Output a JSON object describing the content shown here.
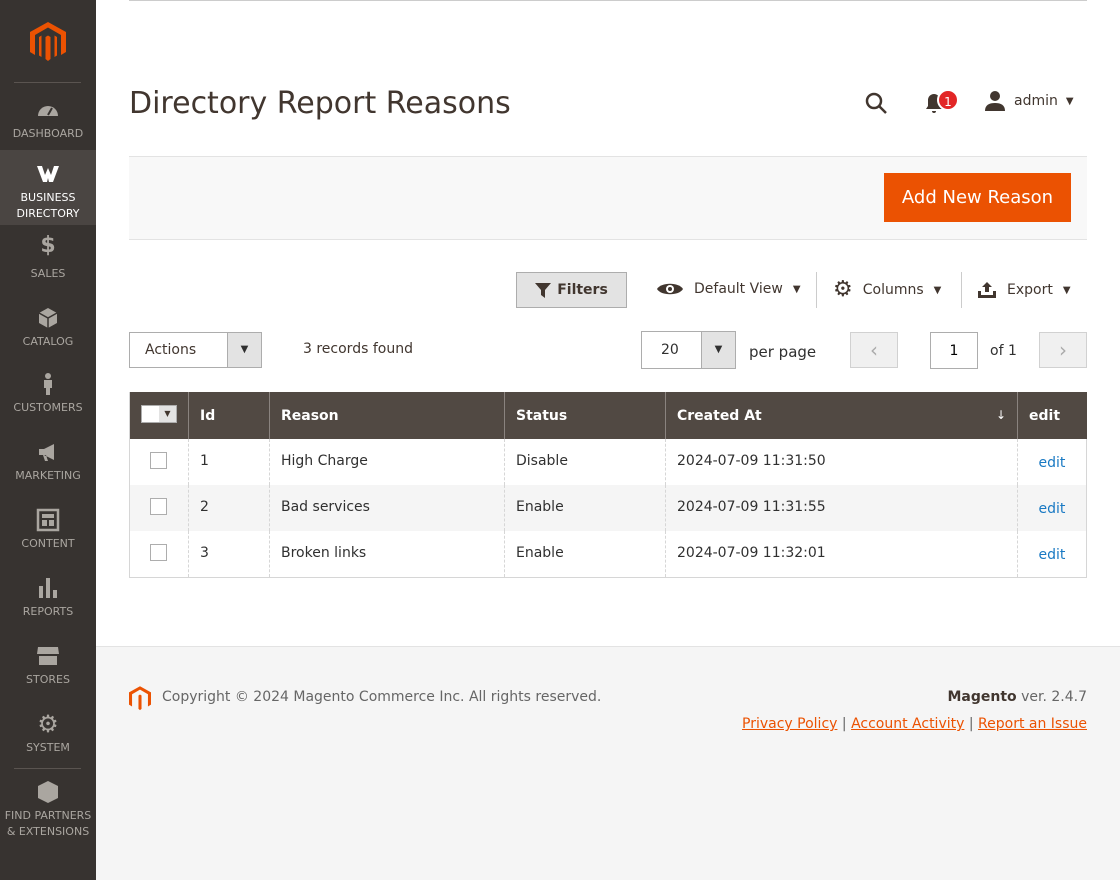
{
  "sidebar": {
    "items": [
      {
        "label": "DASHBOARD",
        "icon": "dashboard-icon"
      },
      {
        "label": "BUSINESS DIRECTORY",
        "icon": "business-directory-icon",
        "active": true
      },
      {
        "label": "SALES",
        "icon": "dollar-icon"
      },
      {
        "label": "CATALOG",
        "icon": "box-icon"
      },
      {
        "label": "CUSTOMERS",
        "icon": "person-icon"
      },
      {
        "label": "MARKETING",
        "icon": "megaphone-icon"
      },
      {
        "label": "CONTENT",
        "icon": "layout-icon"
      },
      {
        "label": "REPORTS",
        "icon": "bar-chart-icon"
      },
      {
        "label": "STORES",
        "icon": "store-icon"
      },
      {
        "label": "SYSTEM",
        "icon": "gear-icon"
      },
      {
        "label": "FIND PARTNERS & EXTENSIONS",
        "icon": "blocks-icon"
      }
    ]
  },
  "header": {
    "title": "Directory Report Reasons",
    "notifications": "1",
    "user": "admin"
  },
  "actions": {
    "add_new": "Add New Reason"
  },
  "toolbar": {
    "filters": "Filters",
    "view": "Default View",
    "columns": "Columns",
    "export": "Export",
    "mass_actions": "Actions",
    "records": "3 records found",
    "per_page_value": "20",
    "per_page_label": "per page",
    "page": "1",
    "of_pages": "of 1"
  },
  "table": {
    "headers": [
      "Id",
      "Reason",
      "Status",
      "Created At",
      "edit"
    ],
    "sort_indicator": "↓",
    "rows": [
      {
        "id": "1",
        "reason": "High Charge",
        "status": "Disable",
        "created": "2024-07-09 11:31:50",
        "edit": "edit"
      },
      {
        "id": "2",
        "reason": "Bad services",
        "status": "Enable",
        "created": "2024-07-09 11:31:55",
        "edit": "edit"
      },
      {
        "id": "3",
        "reason": "Broken links",
        "status": "Enable",
        "created": "2024-07-09 11:32:01",
        "edit": "edit"
      }
    ]
  },
  "footer": {
    "copyright": "Copyright © 2024 Magento Commerce Inc. All rights reserved.",
    "brand": "Magento",
    "version": " ver. 2.4.7",
    "links": [
      "Privacy Policy",
      "Account Activity",
      "Report an Issue"
    ],
    "sep": "|"
  },
  "colors": {
    "accent": "#eb5202",
    "sidebar": "#373330",
    "table_header": "#514943"
  }
}
